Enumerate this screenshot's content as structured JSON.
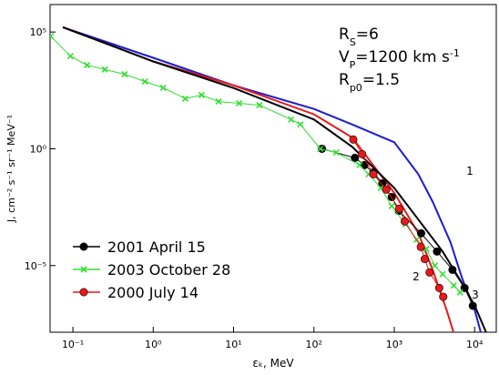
{
  "chart_data": {
    "type": "line",
    "xlog": true,
    "ylog": true,
    "xlim": [
      0.052,
      18600
    ],
    "ylim": [
      1.4e-08,
      1500000
    ],
    "xticks": [
      {
        "value": 0.1,
        "label": "10⁻¹"
      },
      {
        "value": 1,
        "label": "10⁰"
      },
      {
        "value": 10,
        "label": "10¹"
      },
      {
        "value": 100,
        "label": "10²"
      },
      {
        "value": 1000,
        "label": "10³"
      },
      {
        "value": 10000,
        "label": "10⁴"
      }
    ],
    "yticks": [
      {
        "value": 1e-05,
        "label": "10⁻⁵"
      },
      {
        "value": 1,
        "label": "10⁰"
      },
      {
        "value": 100000,
        "label": "10⁵"
      }
    ],
    "xlabel": "εₖ, MeV",
    "ylabel": "J, cm⁻² s⁻¹ sr⁻¹ MeV⁻¹",
    "legend": "lower left",
    "curves": [
      {
        "label": "1",
        "color": "#1a1ad4",
        "x": [
          0.075,
          1,
          10,
          100,
          300,
          1000,
          2000,
          3000,
          5000,
          7000,
          10000,
          12000
        ],
        "values": [
          160000,
          7900,
          520,
          51,
          11,
          1.9,
          0.081,
          0.0055,
          0.0001,
          2.8e-06,
          1.3e-07,
          1.3e-08
        ]
      },
      {
        "label": "2",
        "color": "#e8191a",
        "x": [
          0.075,
          1,
          10,
          100,
          300,
          1000,
          2000,
          3000,
          4500,
          5500
        ],
        "values": [
          160000,
          5500,
          520,
          30,
          3,
          0.013,
          0.00024,
          6.6e-06,
          1.2e-07,
          1.3e-08
        ]
      },
      {
        "label": "3",
        "color": "#000000",
        "x": [
          0.075,
          1,
          10,
          100,
          300,
          1000,
          2000,
          4000,
          7000,
          10000,
          14000
        ],
        "values": [
          160000,
          5500,
          400,
          18,
          1.2,
          0.021,
          0.00093,
          4e-05,
          1.7e-06,
          2e-07,
          1.3e-08
        ]
      }
    ],
    "series": [
      {
        "name": "2001 April 15",
        "color": "#000000",
        "marker": "circle",
        "x": [
          126,
          324,
          424,
          550,
          710,
          930,
          1140,
          2160,
          3400,
          5300,
          7500,
          9500
        ],
        "values": [
          1,
          0.41,
          0.2,
          0.098,
          0.033,
          0.0086,
          0.0022,
          0.00024,
          4e-05,
          6.6e-06,
          1.1e-06,
          1.9e-07
        ]
      },
      {
        "name": "2003 October 28",
        "color": "#33dd33",
        "marker": "x",
        "x": [
          0.053,
          0.093,
          0.15,
          0.25,
          0.44,
          0.79,
          1.33,
          2.5,
          4.0,
          6.5,
          11.7,
          21,
          52,
          68,
          120,
          190,
          370,
          480,
          680,
          930,
          1380,
          1900,
          2500,
          3200,
          4000,
          5500,
          6600
        ],
        "values": [
          66000,
          9300,
          3800,
          2500,
          1550,
          760,
          410,
          140,
          200,
          105,
          89,
          74,
          18,
          11,
          1,
          0.69,
          0.2,
          0.081,
          0.021,
          0.0035,
          0.00059,
          0.00013,
          5.2e-05,
          1e-05,
          4.3e-06,
          1.4e-06,
          7.1e-07
        ]
      },
      {
        "name": "2000 July 14",
        "color": "#e8191a",
        "marker": "circle",
        "x": [
          309,
          398,
          550,
          794,
          1150,
          1350,
          2140,
          2400,
          2750,
          3630,
          4070
        ],
        "values": [
          2.5,
          0.59,
          0.081,
          0.018,
          0.0027,
          0.00078,
          6.3e-05,
          1.9e-05,
          5.1e-06,
          1.1e-06,
          4.6e-07
        ]
      }
    ],
    "annotations": [
      [
        {
          "text": "R"
        },
        {
          "sub": "S"
        },
        {
          "text": "=6"
        }
      ],
      [
        {
          "text": "V"
        },
        {
          "sub": "P"
        },
        {
          "text": "=1200 km s"
        },
        {
          "sup": "-1"
        }
      ],
      [
        {
          "text": "R"
        },
        {
          "sub": "p0"
        },
        {
          "text": "=1.5"
        }
      ]
    ]
  }
}
